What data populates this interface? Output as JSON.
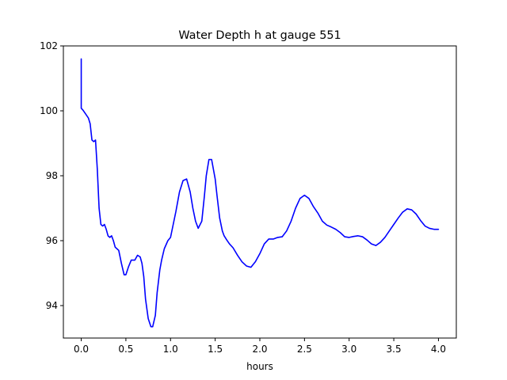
{
  "chart_data": {
    "type": "line",
    "title": "Water Depth h at gauge 551",
    "xlabel": "hours",
    "ylabel": "",
    "xlim": [
      -0.2,
      4.2
    ],
    "ylim": [
      93,
      102
    ],
    "xticks": [
      0.0,
      0.5,
      1.0,
      1.5,
      2.0,
      2.5,
      3.0,
      3.5,
      4.0
    ],
    "xtick_labels": [
      "0.0",
      "0.5",
      "1.0",
      "1.5",
      "2.0",
      "2.5",
      "3.0",
      "3.5",
      "4.0"
    ],
    "yticks": [
      94,
      96,
      98,
      100,
      102
    ],
    "ytick_labels": [
      "94",
      "96",
      "98",
      "100",
      "102"
    ],
    "grid": false,
    "series": [
      {
        "color": "#0000ff",
        "x": [
          0.0,
          0.0,
          0.0,
          0.02,
          0.05,
          0.08,
          0.1,
          0.12,
          0.14,
          0.16,
          0.18,
          0.2,
          0.22,
          0.24,
          0.26,
          0.28,
          0.3,
          0.32,
          0.34,
          0.36,
          0.38,
          0.4,
          0.42,
          0.45,
          0.48,
          0.5,
          0.53,
          0.56,
          0.6,
          0.63,
          0.66,
          0.68,
          0.7,
          0.72,
          0.75,
          0.78,
          0.8,
          0.83,
          0.85,
          0.88,
          0.9,
          0.93,
          0.97,
          1.0,
          1.03,
          1.06,
          1.1,
          1.14,
          1.18,
          1.22,
          1.25,
          1.28,
          1.31,
          1.35,
          1.38,
          1.4,
          1.43,
          1.46,
          1.5,
          1.52,
          1.55,
          1.58,
          1.6,
          1.63,
          1.66,
          1.7,
          1.75,
          1.8,
          1.85,
          1.9,
          1.95,
          2.0,
          2.05,
          2.1,
          2.15,
          2.2,
          2.25,
          2.3,
          2.35,
          2.4,
          2.45,
          2.5,
          2.55,
          2.6,
          2.65,
          2.7,
          2.75,
          2.8,
          2.85,
          2.9,
          2.95,
          3.0,
          3.05,
          3.1,
          3.15,
          3.2,
          3.25,
          3.3,
          3.35,
          3.4,
          3.45,
          3.5,
          3.55,
          3.6,
          3.65,
          3.7,
          3.75,
          3.8,
          3.85,
          3.9,
          3.95,
          4.0
        ],
        "y": [
          101.6,
          100.9,
          100.08,
          100.02,
          99.9,
          99.78,
          99.6,
          99.1,
          99.05,
          99.1,
          98.2,
          97.0,
          96.5,
          96.45,
          96.5,
          96.35,
          96.15,
          96.1,
          96.15,
          96.0,
          95.8,
          95.75,
          95.7,
          95.3,
          94.95,
          94.95,
          95.2,
          95.4,
          95.4,
          95.55,
          95.5,
          95.3,
          94.9,
          94.2,
          93.6,
          93.35,
          93.35,
          93.7,
          94.4,
          95.1,
          95.4,
          95.75,
          96.0,
          96.1,
          96.5,
          96.9,
          97.5,
          97.85,
          97.9,
          97.5,
          97.0,
          96.6,
          96.38,
          96.6,
          97.4,
          98.0,
          98.5,
          98.5,
          97.9,
          97.4,
          96.7,
          96.3,
          96.15,
          96.02,
          95.9,
          95.78,
          95.55,
          95.35,
          95.22,
          95.18,
          95.35,
          95.6,
          95.9,
          96.05,
          96.05,
          96.1,
          96.12,
          96.3,
          96.6,
          97.0,
          97.3,
          97.4,
          97.3,
          97.05,
          96.85,
          96.6,
          96.48,
          96.42,
          96.35,
          96.25,
          96.12,
          96.1,
          96.13,
          96.15,
          96.12,
          96.02,
          95.9,
          95.85,
          95.95,
          96.1,
          96.3,
          96.5,
          96.7,
          96.88,
          96.98,
          96.95,
          96.82,
          96.62,
          96.45,
          96.38,
          96.35,
          96.35
        ]
      }
    ]
  }
}
